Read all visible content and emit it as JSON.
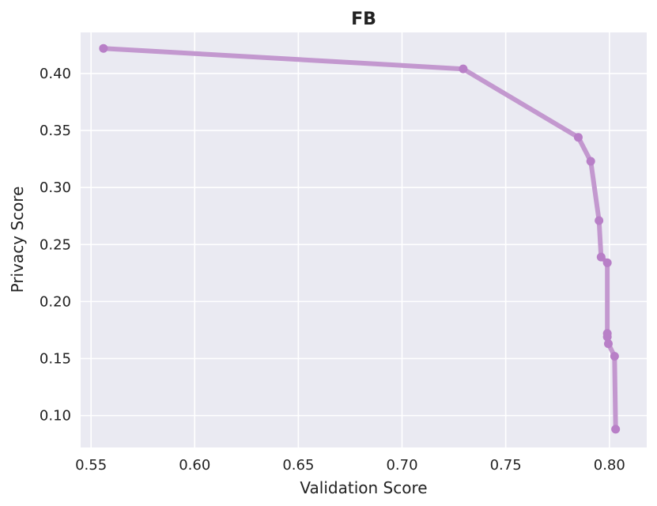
{
  "chart_data": {
    "type": "line",
    "title": "FB",
    "xlabel": "Validation Score",
    "ylabel": "Privacy Score",
    "xlim": [
      0.545,
      0.818
    ],
    "ylim": [
      0.072,
      0.436
    ],
    "xticks": [
      "0.55",
      "0.60",
      "0.65",
      "0.70",
      "0.75",
      "0.80"
    ],
    "yticks": [
      "0.10",
      "0.15",
      "0.20",
      "0.25",
      "0.30",
      "0.35",
      "0.40"
    ],
    "grid": true,
    "colors": {
      "line": "#c398cf",
      "marker": "#b87fc7",
      "background": "#eaeaf2",
      "grid": "#ffffff"
    },
    "series": [
      {
        "x": [
          0.556,
          0.7295,
          0.785,
          0.791,
          0.795,
          0.796,
          0.799,
          0.799,
          0.799,
          0.7995,
          0.8025,
          0.803
        ],
        "y": [
          0.422,
          0.404,
          0.344,
          0.323,
          0.271,
          0.239,
          0.234,
          0.172,
          0.169,
          0.163,
          0.152,
          0.088
        ]
      }
    ]
  }
}
